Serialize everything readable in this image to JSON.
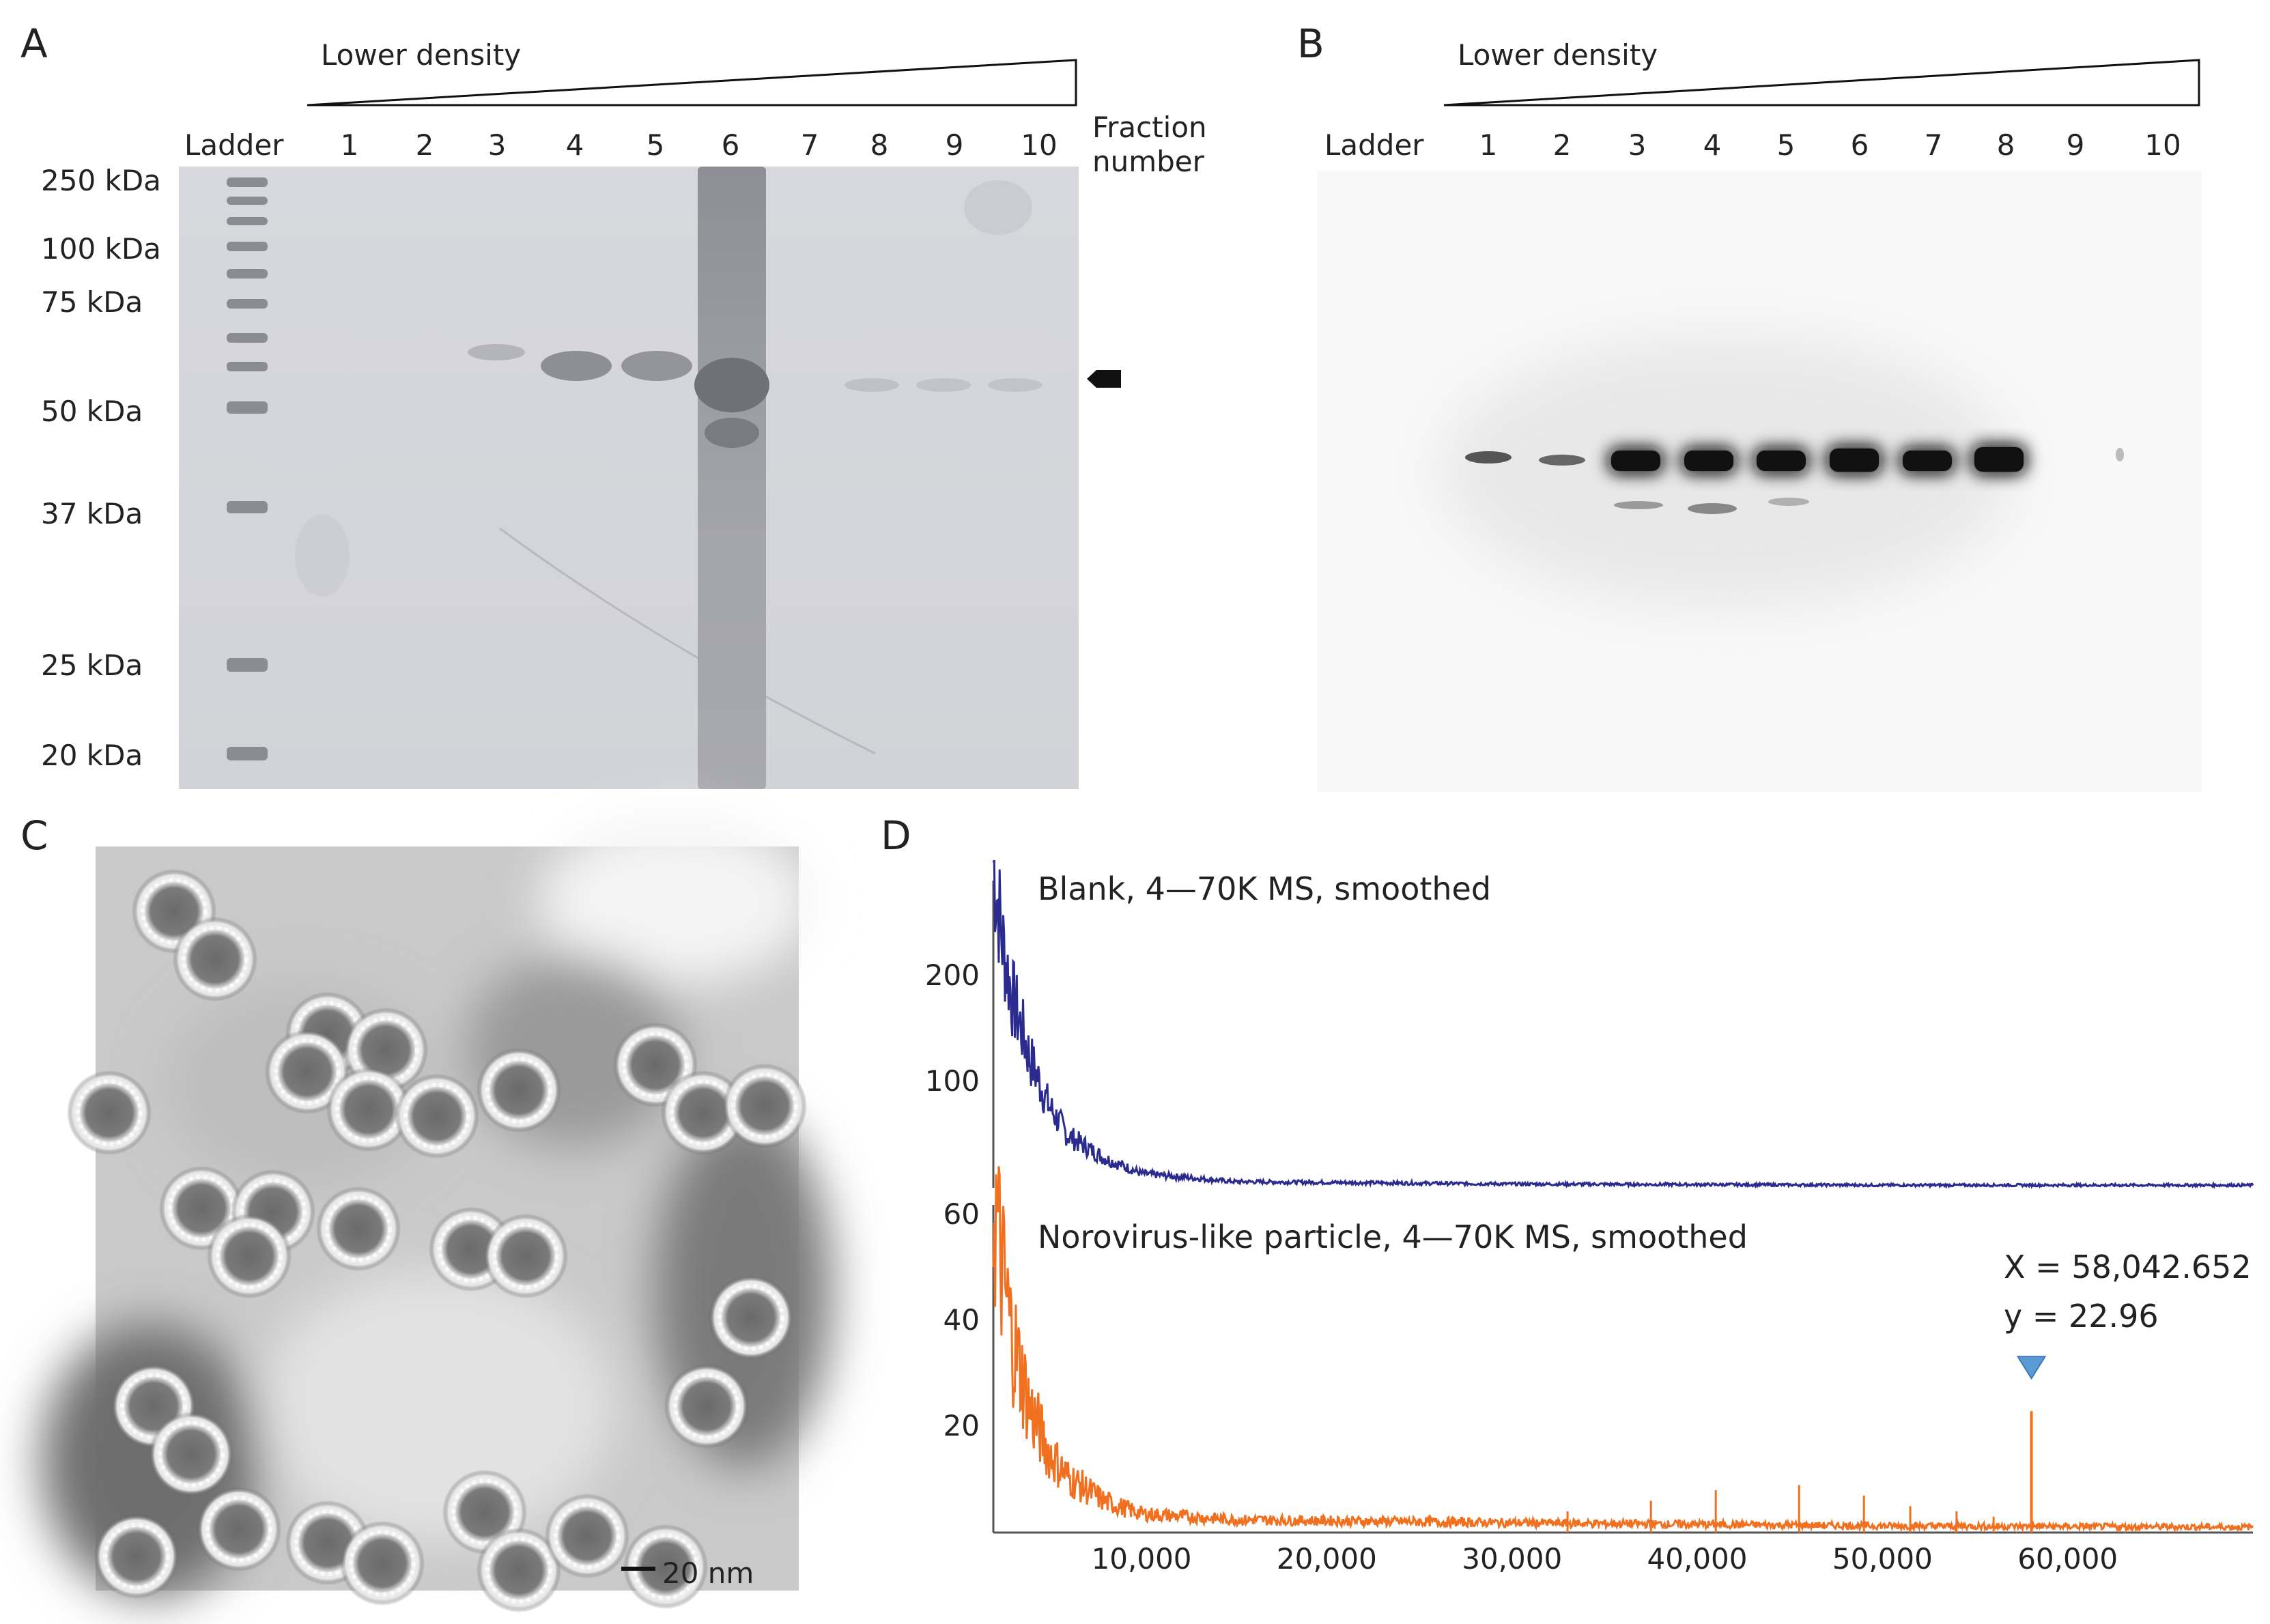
{
  "panels": {
    "A": {
      "letter": "A",
      "gradient_label": "Lower density",
      "ladder_label": "Ladder",
      "lanes": [
        "1",
        "2",
        "3",
        "4",
        "5",
        "6",
        "7",
        "8",
        "9",
        "10"
      ],
      "fraction_label_line1": "Fraction",
      "fraction_label_line2": "number",
      "ladder_marks": [
        "250 kDa",
        "100 kDa",
        "75 kDa",
        "50 kDa",
        "37 kDa",
        "25  kDa",
        "20  kDa"
      ]
    },
    "B": {
      "letter": "B",
      "gradient_label": "Lower density",
      "ladder_label": "Ladder",
      "lanes": [
        "1",
        "2",
        "3",
        "4",
        "5",
        "6",
        "7",
        "8",
        "9",
        "10"
      ]
    },
    "C": {
      "letter": "C",
      "scale_bar_label": "20 nm"
    },
    "D": {
      "letter": "D",
      "blank_title": "Blank, 4—70K MS, smoothed",
      "vlp_title": "Norovirus-like particle, 4—70K MS, smoothed",
      "peak_x_label": "X = 58,042.652",
      "peak_y_label": "y = 22.96",
      "colors": {
        "blank": "#2b2b8f",
        "vlp": "#f07020",
        "marker": "#5b9bd5"
      }
    }
  },
  "chart_data": [
    {
      "type": "line",
      "name": "Blank, 4—70K MS, smoothed",
      "xlim": [
        2000,
        70000
      ],
      "ylim": [
        0,
        290
      ],
      "y_ticks": [
        200,
        100
      ],
      "x": [
        2000,
        2500,
        3000,
        4000,
        5000,
        6000,
        8000,
        10000,
        15000,
        30000,
        50000,
        70000
      ],
      "y": [
        280,
        210,
        165,
        110,
        70,
        45,
        25,
        12,
        5,
        3,
        2,
        2
      ]
    },
    {
      "type": "line",
      "name": "Norovirus-like particle, 4—70K MS, smoothed",
      "xlim": [
        2000,
        70000
      ],
      "ylim": [
        0,
        62
      ],
      "y_ticks": [
        60,
        40,
        20
      ],
      "x_ticks": [
        "10,000",
        "20,000",
        "30,000",
        "40,000",
        "50,000",
        "60,000"
      ],
      "x_tick_values": [
        10000,
        20000,
        30000,
        40000,
        50000,
        60000
      ],
      "x": [
        2000,
        2500,
        3000,
        4000,
        5000,
        6000,
        8000,
        10000,
        15000,
        30000,
        50000,
        70000
      ],
      "y": [
        55,
        42,
        32,
        20,
        13,
        9,
        5,
        3,
        2,
        1.5,
        1,
        0.8
      ],
      "peak": {
        "x": 58042.652,
        "y": 22.96
      },
      "minor_peaks": [
        {
          "x": 41000,
          "y": 8
        },
        {
          "x": 45500,
          "y": 9
        },
        {
          "x": 49000,
          "y": 7
        },
        {
          "x": 51500,
          "y": 5
        },
        {
          "x": 37500,
          "y": 6
        },
        {
          "x": 33000,
          "y": 4
        },
        {
          "x": 54000,
          "y": 4
        },
        {
          "x": 56000,
          "y": 3
        }
      ]
    }
  ]
}
